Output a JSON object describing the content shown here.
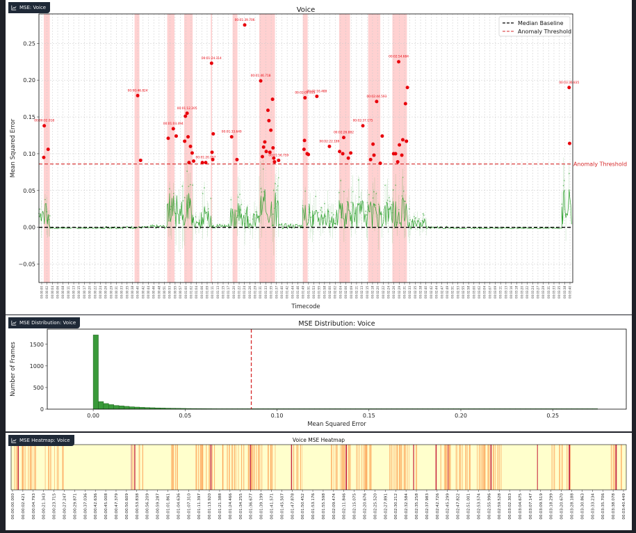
{
  "panels": {
    "voice_tab": "MSE: Voice",
    "dist_tab": "MSE Distribution: Voice",
    "heat_tab": "MSE Heatmap: Voice"
  },
  "chart_data": [
    {
      "type": "scatter",
      "title": "Voice",
      "xlabel": "Timecode",
      "ylabel": "Mean Squared Error",
      "ylim": [
        -0.075,
        0.29
      ],
      "yticks": [
        -0.05,
        0.0,
        0.05,
        0.1,
        0.15,
        0.2,
        0.25
      ],
      "ytick_labels": [
        "−0.05",
        "0.00",
        "0.05",
        "0.10",
        "0.15",
        "0.20",
        "0.25"
      ],
      "x_range_seconds": [
        0,
        220.5
      ],
      "xtick_labels": [
        "00:00:00",
        "00:00:02",
        "00:00:04",
        "00:00:06",
        "00:00:08",
        "00:00:11",
        "00:00:13",
        "00:00:15",
        "00:00:17",
        "00:00:20",
        "00:00:22",
        "00:00:24",
        "00:00:26",
        "00:00:29",
        "00:00:31",
        "00:00:33",
        "00:00:35",
        "00:00:38",
        "00:00:40",
        "00:00:42",
        "00:00:44",
        "00:00:46",
        "00:00:48",
        "00:00:51",
        "00:00:53",
        "00:00:55",
        "00:00:57",
        "00:01:00",
        "00:01:02",
        "00:01:04",
        "00:01:06",
        "00:01:09",
        "00:01:11",
        "00:01:13",
        "00:01:15",
        "00:01:17",
        "00:01:20",
        "00:01:22",
        "00:01:24",
        "00:01:26",
        "00:01:29",
        "00:01:31",
        "00:01:33",
        "00:01:35",
        "00:01:37",
        "00:01:40",
        "00:01:42",
        "00:01:44",
        "00:01:46",
        "00:01:49",
        "00:01:51",
        "00:01:53",
        "00:01:55",
        "00:01:58",
        "00:02:00",
        "00:02:02",
        "00:02:04",
        "00:02:06",
        "00:02:09",
        "00:02:11",
        "00:02:13",
        "00:02:15",
        "00:02:18",
        "00:02:20",
        "00:02:22",
        "00:02:24",
        "00:02:26",
        "00:02:29",
        "00:02:31",
        "00:02:33",
        "00:02:35",
        "00:02:38",
        "00:02:40",
        "00:02:42",
        "00:02:44",
        "00:02:47",
        "00:02:49",
        "00:02:51",
        "00:02:53",
        "00:02:55",
        "00:02:58",
        "00:03:00",
        "00:03:02",
        "00:03:04",
        "00:03:07",
        "00:03:09",
        "00:03:11",
        "00:03:13",
        "00:03:16",
        "00:03:18",
        "00:03:20",
        "00:03:22",
        "00:03:24",
        "00:03:27",
        "00:03:29",
        "00:03:31",
        "00:03:33",
        "00:03:35",
        "00:03:38",
        "00:03:40"
      ],
      "median_baseline": 0.0,
      "anomaly_threshold": 0.086,
      "threshold_label": "Anomaly Threshold",
      "legend": [
        "Median Baseline",
        "Anomaly Threshold"
      ],
      "legend_position": "top-right",
      "grid": true,
      "anomaly_regions_seconds": [
        [
          2,
          4.5
        ],
        [
          39.5,
          41.5
        ],
        [
          53,
          56
        ],
        [
          60,
          63.5
        ],
        [
          71,
          71.5
        ],
        [
          80,
          82
        ],
        [
          91,
          97.5
        ],
        [
          109,
          111
        ],
        [
          124,
          128.5
        ],
        [
          136,
          141
        ],
        [
          146,
          152
        ]
      ],
      "anomaly_points": [
        {
          "t": 2.0,
          "y": 0.095
        },
        {
          "t": 2.2,
          "y": 0.138
        },
        {
          "t": 3.8,
          "y": 0.106
        },
        {
          "t": 40.8,
          "y": 0.179
        },
        {
          "t": 42.0,
          "y": 0.091
        },
        {
          "t": 53.4,
          "y": 0.121
        },
        {
          "t": 55.5,
          "y": 0.134
        },
        {
          "t": 56.7,
          "y": 0.124
        },
        {
          "t": 60.2,
          "y": 0.117
        },
        {
          "t": 60.5,
          "y": 0.151
        },
        {
          "t": 61.2,
          "y": 0.155
        },
        {
          "t": 61.6,
          "y": 0.123
        },
        {
          "t": 62.0,
          "y": 0.088
        },
        {
          "t": 62.6,
          "y": 0.11
        },
        {
          "t": 63.3,
          "y": 0.101
        },
        {
          "t": 63.9,
          "y": 0.09
        },
        {
          "t": 67.5,
          "y": 0.088
        },
        {
          "t": 68.9,
          "y": 0.088
        },
        {
          "t": 71.3,
          "y": 0.223
        },
        {
          "t": 71.5,
          "y": 0.102
        },
        {
          "t": 71.8,
          "y": 0.092
        },
        {
          "t": 72.0,
          "y": 0.127
        },
        {
          "t": 79.6,
          "y": 0.123
        },
        {
          "t": 81.8,
          "y": 0.092
        },
        {
          "t": 85.0,
          "y": 0.275
        },
        {
          "t": 91.6,
          "y": 0.199
        },
        {
          "t": 92.3,
          "y": 0.096
        },
        {
          "t": 92.8,
          "y": 0.109
        },
        {
          "t": 93.3,
          "y": 0.116
        },
        {
          "t": 93.9,
          "y": 0.103
        },
        {
          "t": 94.6,
          "y": 0.159
        },
        {
          "t": 95.0,
          "y": 0.145
        },
        {
          "t": 95.4,
          "y": 0.102
        },
        {
          "t": 95.8,
          "y": 0.132
        },
        {
          "t": 96.5,
          "y": 0.174
        },
        {
          "t": 96.7,
          "y": 0.108
        },
        {
          "t": 97.0,
          "y": 0.094
        },
        {
          "t": 97.3,
          "y": 0.089
        },
        {
          "t": 99.0,
          "y": 0.091
        },
        {
          "t": 109.5,
          "y": 0.106
        },
        {
          "t": 109.7,
          "y": 0.118
        },
        {
          "t": 109.9,
          "y": 0.176
        },
        {
          "t": 110.8,
          "y": 0.1
        },
        {
          "t": 111.3,
          "y": 0.099
        },
        {
          "t": 114.8,
          "y": 0.178
        },
        {
          "t": 120.0,
          "y": 0.11
        },
        {
          "t": 124.2,
          "y": 0.103
        },
        {
          "t": 125.5,
          "y": 0.1
        },
        {
          "t": 125.9,
          "y": 0.122
        },
        {
          "t": 127.8,
          "y": 0.094
        },
        {
          "t": 128.8,
          "y": 0.101
        },
        {
          "t": 133.8,
          "y": 0.138
        },
        {
          "t": 137.0,
          "y": 0.092
        },
        {
          "t": 138.0,
          "y": 0.113
        },
        {
          "t": 138.4,
          "y": 0.098
        },
        {
          "t": 139.5,
          "y": 0.171
        },
        {
          "t": 141.0,
          "y": 0.087
        },
        {
          "t": 141.8,
          "y": 0.124
        },
        {
          "t": 146.5,
          "y": 0.1
        },
        {
          "t": 147.3,
          "y": 0.1
        },
        {
          "t": 148.2,
          "y": 0.089
        },
        {
          "t": 148.6,
          "y": 0.225
        },
        {
          "t": 148.9,
          "y": 0.112
        },
        {
          "t": 149.9,
          "y": 0.098
        },
        {
          "t": 150.3,
          "y": 0.119
        },
        {
          "t": 151.4,
          "y": 0.168
        },
        {
          "t": 151.8,
          "y": 0.117
        },
        {
          "t": 152.2,
          "y": 0.19
        },
        {
          "t": 219.0,
          "y": 0.19
        },
        {
          "t": 219.2,
          "y": 0.114
        }
      ],
      "annotations": [
        {
          "t": 2.2,
          "y": 0.138,
          "text": "00:00:02.018"
        },
        {
          "t": 40.8,
          "y": 0.179,
          "text": "00:00:46.824"
        },
        {
          "t": 55.5,
          "y": 0.134,
          "text": "00:01:03.494"
        },
        {
          "t": 61.2,
          "y": 0.155,
          "text": "00:01:12.205"
        },
        {
          "t": 68.9,
          "y": 0.088,
          "text": "00:01:20.197"
        },
        {
          "t": 71.3,
          "y": 0.223,
          "text": "00:01:24.314"
        },
        {
          "t": 79.6,
          "y": 0.123,
          "text": "00:01:33.649"
        },
        {
          "t": 85.0,
          "y": 0.275,
          "text": "00:01:39.706"
        },
        {
          "t": 91.6,
          "y": 0.199,
          "text": "00:01:46.718"
        },
        {
          "t": 99.0,
          "y": 0.091,
          "text": "00:01:56.759"
        },
        {
          "t": 109.9,
          "y": 0.176,
          "text": "00:02:09.955"
        },
        {
          "t": 114.8,
          "y": 0.178,
          "text": "00:02:16.488"
        },
        {
          "t": 120.0,
          "y": 0.11,
          "text": "00:02:22.189"
        },
        {
          "t": 125.9,
          "y": 0.122,
          "text": "00:02:26.882"
        },
        {
          "t": 133.8,
          "y": 0.138,
          "text": "00:02:37.175"
        },
        {
          "t": 139.5,
          "y": 0.171,
          "text": "00:02:44.593"
        },
        {
          "t": 148.6,
          "y": 0.225,
          "text": "00:02:54.684"
        },
        {
          "t": 219.0,
          "y": 0.19,
          "text": "00:03:36.835"
        }
      ],
      "colors": {
        "anomaly": "#e8000b",
        "band": "#ffb3b3",
        "normal": "#2ca02c",
        "baseline": "#000000"
      }
    },
    {
      "type": "bar",
      "title": "MSE Distribution: Voice",
      "xlabel": "Mean Squared Error",
      "ylabel": "Number of Frames",
      "xlim": [
        -0.025,
        0.29
      ],
      "ylim": [
        0,
        1850
      ],
      "xticks": [
        0.0,
        0.05,
        0.1,
        0.15,
        0.2,
        0.25
      ],
      "xtick_labels": [
        "0.00",
        "0.05",
        "0.10",
        "0.15",
        "0.20",
        "0.25"
      ],
      "yticks": [
        0,
        500,
        1000,
        1500
      ],
      "ytick_labels": [
        "0",
        "500",
        "1000",
        "1500"
      ],
      "bin_width": 0.0028,
      "bin_start": 0.0,
      "counts": [
        1715,
        175,
        130,
        105,
        85,
        75,
        65,
        55,
        48,
        42,
        37,
        33,
        29,
        26,
        23,
        21,
        19,
        17,
        15,
        14,
        13,
        12,
        11,
        10,
        9,
        8,
        8,
        7,
        6,
        6,
        5,
        5,
        4,
        4,
        4,
        3,
        3,
        3,
        3,
        2,
        2,
        2,
        2,
        2,
        2,
        2,
        1,
        1,
        1,
        1,
        1,
        1,
        1,
        1,
        1,
        1,
        1,
        1,
        1,
        1,
        1,
        1,
        1,
        1,
        1,
        1,
        1,
        1,
        1,
        1,
        1,
        1,
        1,
        1,
        1,
        1,
        1,
        1,
        1,
        1,
        1,
        1,
        1,
        1,
        1,
        1,
        1,
        1,
        1,
        1,
        1,
        1,
        1,
        1,
        1,
        1,
        1,
        1
      ],
      "threshold": 0.086,
      "color": "#3a9a3a"
    },
    {
      "type": "heatmap",
      "title": "Voice MSE Heatmap",
      "xtick_labels": [
        "00:00:00.000",
        "00:00:02.421",
        "00:00:04.793",
        "00:00:21.343",
        "00:00:23.715",
        "00:00:27.247",
        "00:00:29.871",
        "00:00:37.036",
        "00:00:42.636",
        "00:00:45.008",
        "00:00:47.379",
        "00:00:50.609",
        "00:00:53.838",
        "00:00:56.209",
        "00:00:59.287",
        "00:01:01.861",
        "00:01:04.636",
        "00:01:07.310",
        "00:01:11.397",
        "00:01:13.920",
        "00:01:21.388",
        "00:01:24.466",
        "00:01:34.255",
        "00:01:36.677",
        "00:01:39.199",
        "00:01:41.571",
        "00:01:45.507",
        "00:01:47.878",
        "00:01:50.452",
        "00:01:53.176",
        "00:01:55.598",
        "00:02:09.474",
        "00:02:11.846",
        "00:02:15.075",
        "00:02:20.676",
        "00:02:25.520",
        "00:02:27.891",
        "00:02:30.212",
        "00:02:32.584",
        "00:02:35.258",
        "00:02:37.983",
        "00:02:42.726",
        "00:02:45.299",
        "00:02:47.822",
        "00:02:51.001",
        "00:02:53.574",
        "00:02:55.996",
        "00:02:59.528",
        "00:03:02.303",
        "00:03:04.675",
        "00:03:07.147",
        "00:03:09.519",
        "00:03:18.299",
        "00:03:20.670",
        "00:03:28.188",
        "00:03:30.863",
        "00:03:33.234",
        "00:03:35.706",
        "00:03:38.078",
        "00:03:40.449"
      ],
      "hot_ranges_fraction": [
        [
          0.005,
          0.04
        ],
        [
          0.055,
          0.085
        ],
        [
          0.19,
          0.215
        ],
        [
          0.26,
          0.27
        ],
        [
          0.3,
          0.38
        ],
        [
          0.385,
          0.43
        ],
        [
          0.455,
          0.475
        ],
        [
          0.52,
          0.595
        ],
        [
          0.615,
          0.66
        ],
        [
          0.69,
          0.8
        ],
        [
          0.855,
          0.86
        ],
        [
          0.875,
          0.91
        ],
        [
          0.975,
          0.995
        ]
      ],
      "colors": {
        "low": "#ffffcc",
        "mid": "#fd8d3c",
        "high": "#bd0026"
      }
    }
  ]
}
